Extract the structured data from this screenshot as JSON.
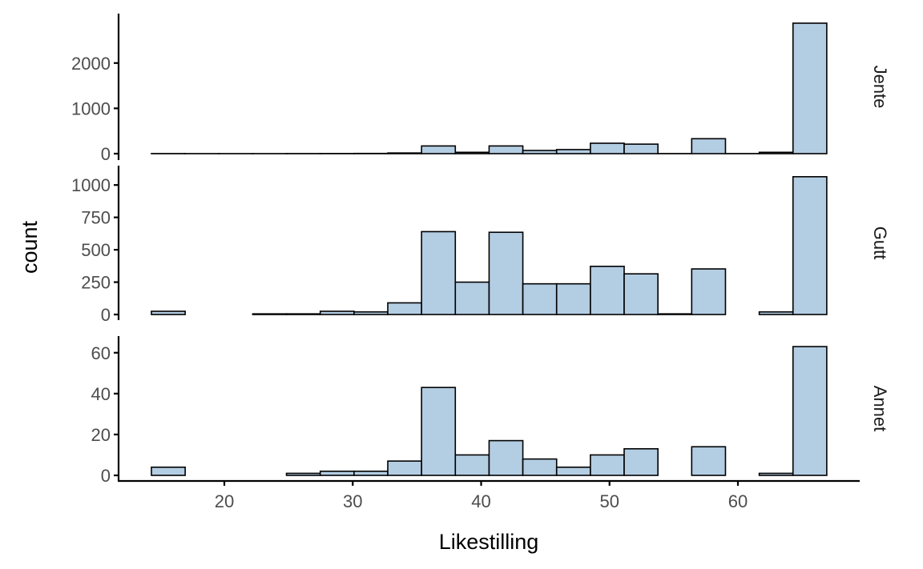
{
  "chart_data": {
    "type": "bar",
    "subtype": "faceted-histogram",
    "xlabel": "Likestilling",
    "ylabel": "count",
    "xlim": [
      12.3,
      68.3
    ],
    "x_ticks": [
      20,
      30,
      40,
      50,
      60
    ],
    "bin_edges": [
      14.32,
      16.95,
      19.58,
      22.21,
      24.84,
      27.47,
      30.1,
      32.73,
      35.36,
      37.99,
      40.62,
      43.25,
      45.88,
      48.51,
      51.14,
      53.77,
      56.4,
      59.03,
      61.66,
      64.29,
      66.92
    ],
    "bar_color": "#b3cde3",
    "facets": [
      {
        "label": "Jente",
        "ylim": [
          0,
          2950
        ],
        "y_ticks": [
          0,
          1000,
          2000
        ],
        "values": [
          2,
          1,
          1,
          1,
          2,
          3,
          5,
          15,
          170,
          30,
          170,
          70,
          90,
          230,
          210,
          2,
          330,
          2,
          30,
          2880
        ]
      },
      {
        "label": "Gutt",
        "ylim": [
          0,
          1100
        ],
        "y_ticks": [
          0,
          250,
          500,
          750,
          1000
        ],
        "values": [
          25,
          0,
          0,
          5,
          5,
          25,
          20,
          90,
          640,
          250,
          635,
          237,
          237,
          372,
          314,
          5,
          352,
          0,
          20,
          1064
        ]
      },
      {
        "label": "Annet",
        "ylim": [
          0,
          65
        ],
        "y_ticks": [
          0,
          20,
          40,
          60
        ],
        "values": [
          4,
          0,
          0,
          0,
          1,
          2,
          2,
          7,
          43,
          10,
          17,
          8,
          4,
          10,
          13,
          0,
          14,
          0,
          1,
          63
        ]
      }
    ]
  }
}
